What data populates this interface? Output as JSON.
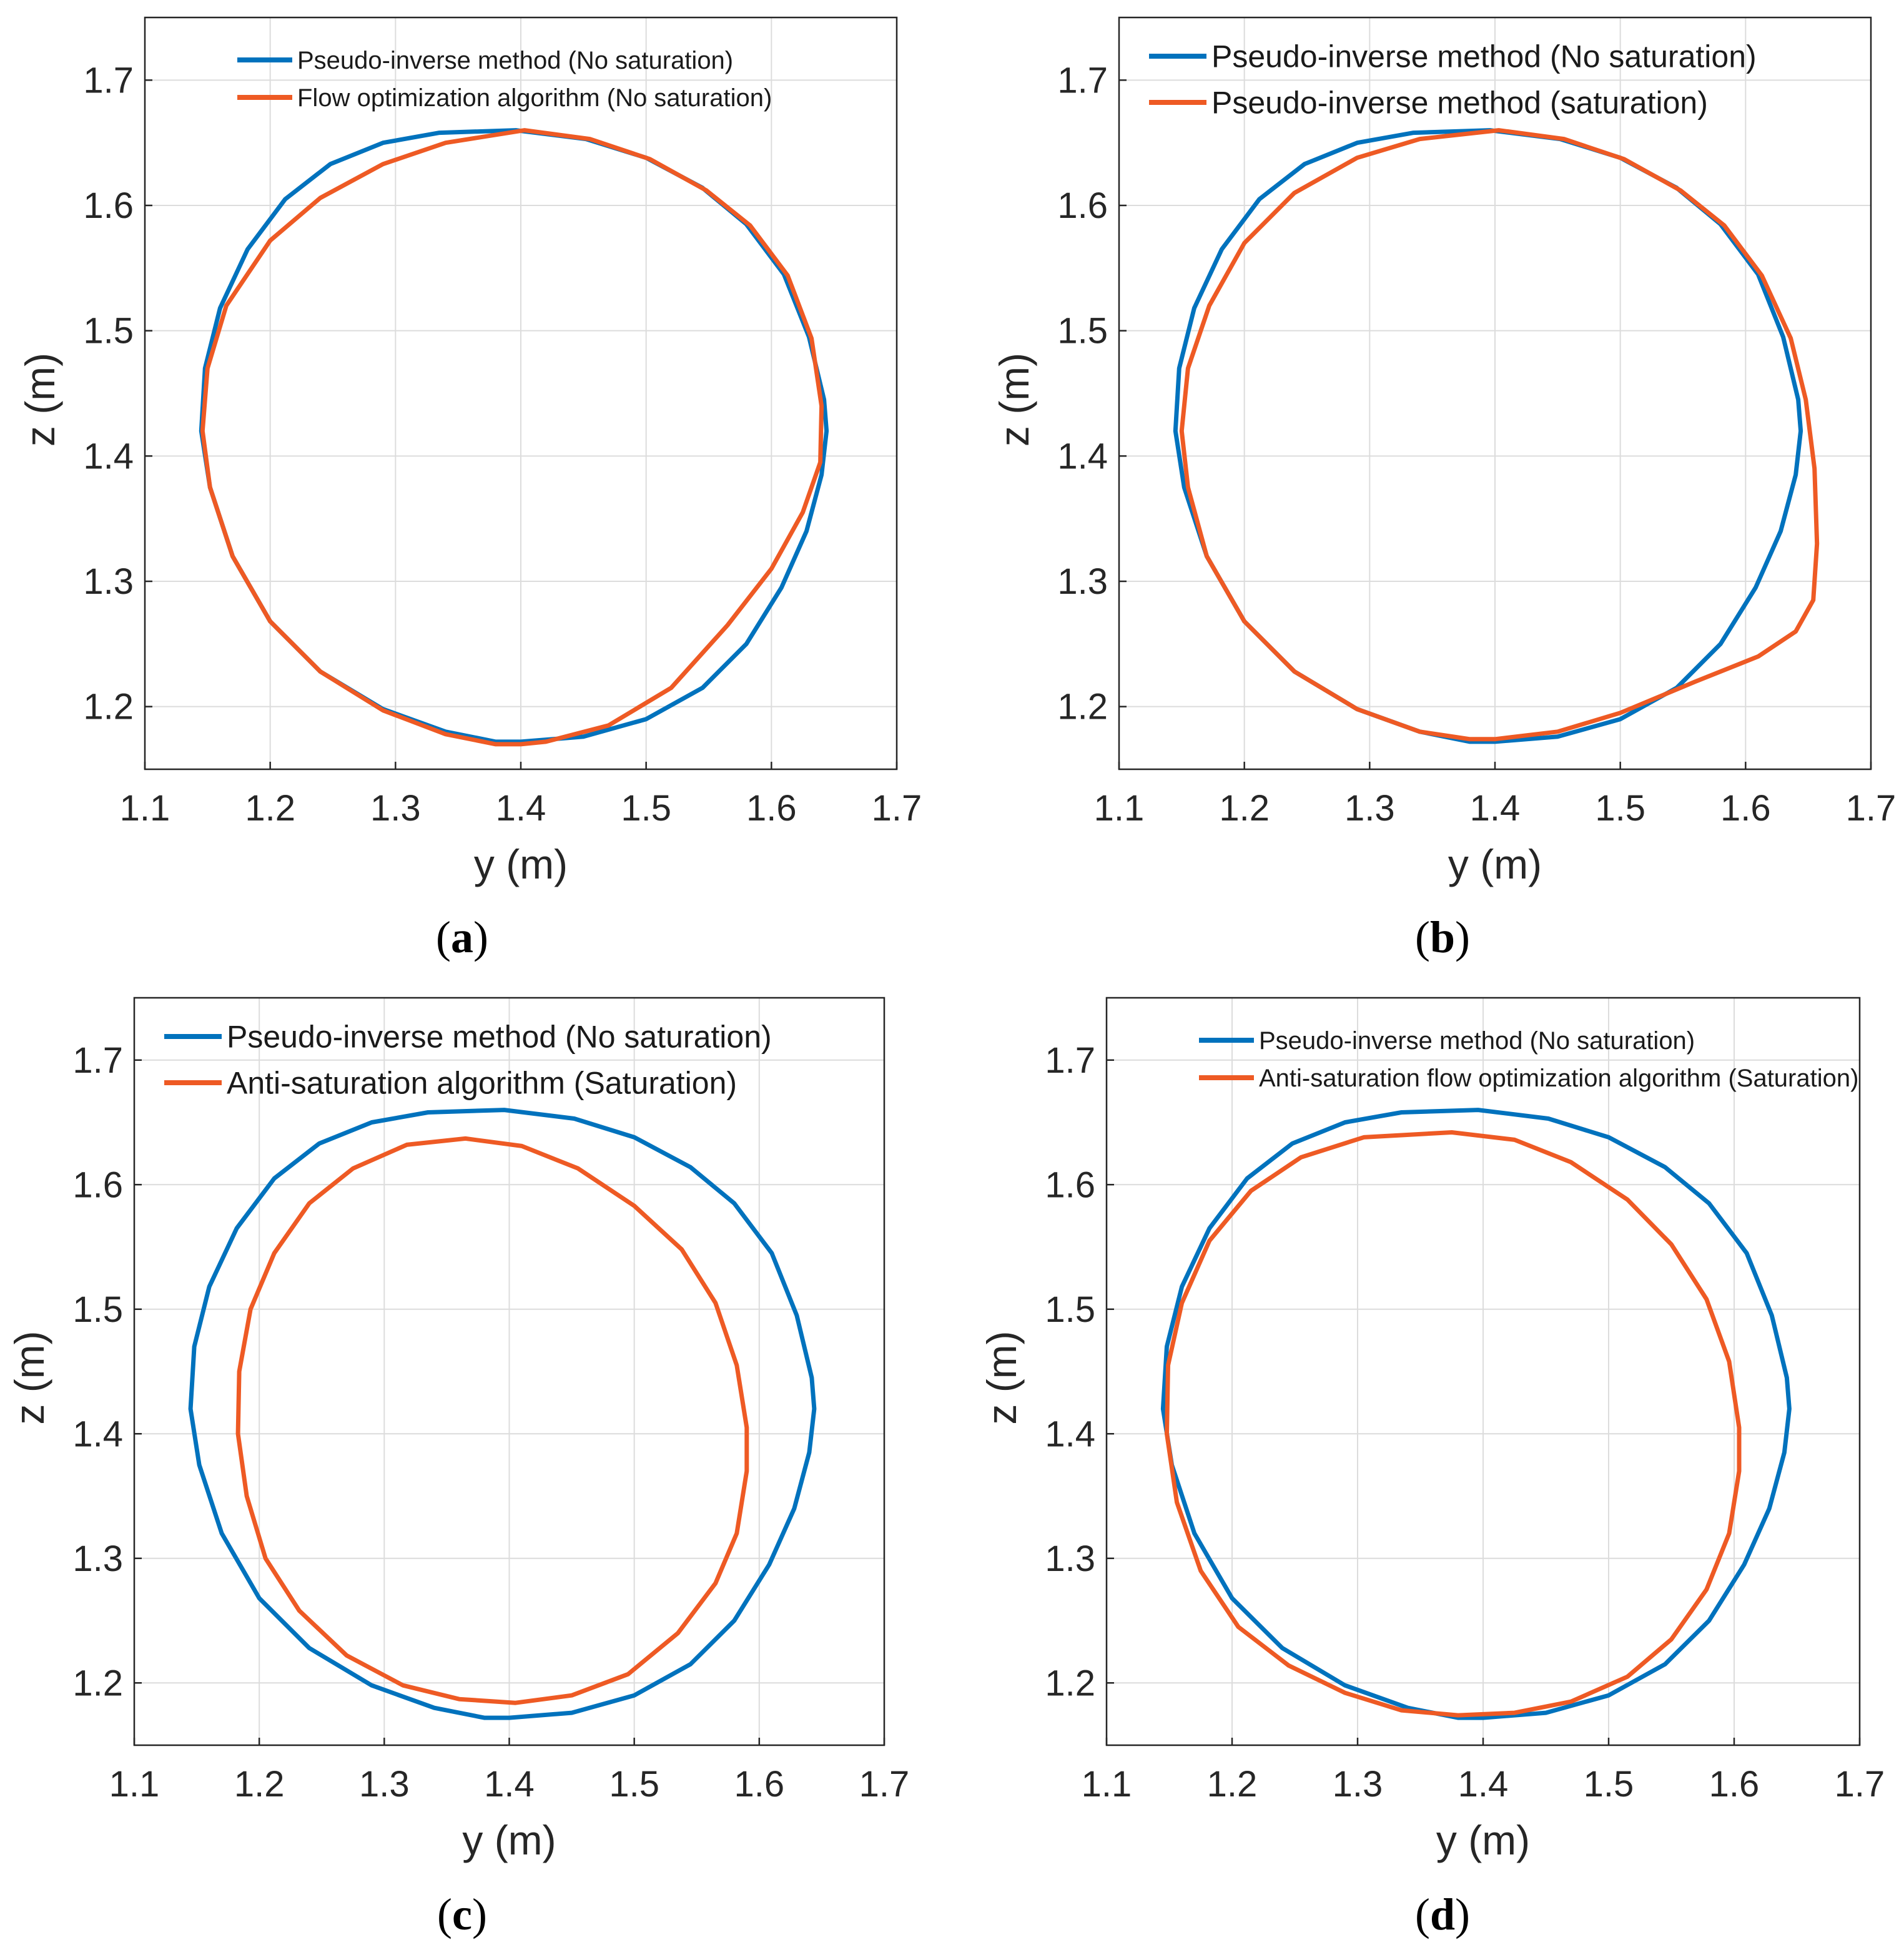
{
  "colors": {
    "blue": "#0072BD",
    "orange": "#EE5A24"
  },
  "chart_data": [
    {
      "type": "line",
      "panel": "a",
      "caption_letter": "a",
      "xlabel": "y (m)",
      "ylabel": "z (m)",
      "xlim": [
        1.1,
        1.7
      ],
      "ylim": [
        1.15,
        1.75
      ],
      "xticks": [
        "1.1",
        "1.2",
        "1.3",
        "1.4",
        "1.5",
        "1.6",
        "1.7"
      ],
      "yticks": [
        "1.2",
        "1.3",
        "1.4",
        "1.5",
        "1.6",
        "1.7"
      ],
      "legend_size": "small",
      "series": [
        {
          "name": "Pseudo-inverse method (No saturation)",
          "color": "#0072BD",
          "x": [
            1.396,
            1.452,
            1.5,
            1.545,
            1.58,
            1.61,
            1.63,
            1.642,
            1.644,
            1.64,
            1.628,
            1.608,
            1.58,
            1.545,
            1.5,
            1.45,
            1.4,
            1.38,
            1.34,
            1.29,
            1.24,
            1.2,
            1.17,
            1.152,
            1.145,
            1.148,
            1.16,
            1.182,
            1.212,
            1.248,
            1.29,
            1.335,
            1.396
          ],
          "y": [
            1.66,
            1.653,
            1.638,
            1.614,
            1.585,
            1.545,
            1.495,
            1.445,
            1.42,
            1.385,
            1.34,
            1.295,
            1.25,
            1.215,
            1.19,
            1.176,
            1.172,
            1.172,
            1.18,
            1.198,
            1.228,
            1.268,
            1.32,
            1.375,
            1.42,
            1.47,
            1.518,
            1.565,
            1.605,
            1.633,
            1.65,
            1.658,
            1.66
          ]
        },
        {
          "name": "Flow optimization algorithm (No saturation)",
          "color": "#EE5A24",
          "x": [
            1.403,
            1.455,
            1.503,
            1.548,
            1.583,
            1.613,
            1.632,
            1.64,
            1.639,
            1.625,
            1.6,
            1.565,
            1.52,
            1.47,
            1.42,
            1.4,
            1.38,
            1.34,
            1.29,
            1.24,
            1.2,
            1.17,
            1.152,
            1.146,
            1.15,
            1.165,
            1.2,
            1.24,
            1.29,
            1.34,
            1.403
          ],
          "y": [
            1.66,
            1.653,
            1.637,
            1.612,
            1.584,
            1.544,
            1.494,
            1.44,
            1.395,
            1.355,
            1.31,
            1.265,
            1.215,
            1.185,
            1.172,
            1.17,
            1.17,
            1.178,
            1.197,
            1.228,
            1.268,
            1.32,
            1.375,
            1.42,
            1.47,
            1.52,
            1.572,
            1.606,
            1.633,
            1.65,
            1.66
          ]
        }
      ]
    },
    {
      "type": "line",
      "panel": "b",
      "caption_letter": "b",
      "xlabel": "y (m)",
      "ylabel": "z (m)",
      "xlim": [
        1.1,
        1.7
      ],
      "ylim": [
        1.15,
        1.75
      ],
      "xticks": [
        "1.1",
        "1.2",
        "1.3",
        "1.4",
        "1.5",
        "1.6",
        "1.7"
      ],
      "yticks": [
        "1.2",
        "1.3",
        "1.4",
        "1.5",
        "1.6",
        "1.7"
      ],
      "legend_size": "large",
      "series": [
        {
          "name": "Pseudo-inverse method (No saturation)",
          "color": "#0072BD",
          "x": [
            1.396,
            1.452,
            1.5,
            1.545,
            1.58,
            1.61,
            1.63,
            1.642,
            1.644,
            1.64,
            1.628,
            1.608,
            1.58,
            1.545,
            1.5,
            1.45,
            1.4,
            1.38,
            1.34,
            1.29,
            1.24,
            1.2,
            1.17,
            1.152,
            1.145,
            1.148,
            1.16,
            1.182,
            1.212,
            1.248,
            1.29,
            1.335,
            1.396
          ],
          "y": [
            1.66,
            1.653,
            1.638,
            1.614,
            1.585,
            1.545,
            1.495,
            1.445,
            1.42,
            1.385,
            1.34,
            1.295,
            1.25,
            1.215,
            1.19,
            1.176,
            1.172,
            1.172,
            1.18,
            1.198,
            1.228,
            1.268,
            1.32,
            1.375,
            1.42,
            1.47,
            1.518,
            1.565,
            1.605,
            1.633,
            1.65,
            1.658,
            1.66
          ]
        },
        {
          "name": "Pseudo-inverse method (saturation)",
          "color": "#EE5A24",
          "x": [
            1.403,
            1.455,
            1.503,
            1.548,
            1.583,
            1.613,
            1.636,
            1.648,
            1.655,
            1.657,
            1.654,
            1.64,
            1.61,
            1.56,
            1.5,
            1.45,
            1.4,
            1.38,
            1.34,
            1.29,
            1.24,
            1.2,
            1.17,
            1.155,
            1.15,
            1.155,
            1.172,
            1.2,
            1.24,
            1.29,
            1.34,
            1.403
          ],
          "y": [
            1.66,
            1.653,
            1.637,
            1.612,
            1.584,
            1.544,
            1.494,
            1.445,
            1.39,
            1.33,
            1.285,
            1.26,
            1.24,
            1.22,
            1.195,
            1.18,
            1.174,
            1.174,
            1.18,
            1.198,
            1.228,
            1.268,
            1.32,
            1.375,
            1.42,
            1.47,
            1.52,
            1.57,
            1.61,
            1.638,
            1.653,
            1.66
          ]
        }
      ]
    },
    {
      "type": "line",
      "panel": "c",
      "caption_letter": "c",
      "xlabel": "y (m)",
      "ylabel": "z (m)",
      "xlim": [
        1.1,
        1.7
      ],
      "ylim": [
        1.15,
        1.75
      ],
      "xticks": [
        "1.1",
        "1.2",
        "1.3",
        "1.4",
        "1.5",
        "1.6",
        "1.7"
      ],
      "yticks": [
        "1.2",
        "1.3",
        "1.4",
        "1.5",
        "1.6",
        "1.7"
      ],
      "legend_size": "large",
      "series": [
        {
          "name": "Pseudo-inverse method (No saturation)",
          "color": "#0072BD",
          "x": [
            1.396,
            1.452,
            1.5,
            1.545,
            1.58,
            1.61,
            1.63,
            1.642,
            1.644,
            1.64,
            1.628,
            1.608,
            1.58,
            1.545,
            1.5,
            1.45,
            1.4,
            1.38,
            1.34,
            1.29,
            1.24,
            1.2,
            1.17,
            1.152,
            1.145,
            1.148,
            1.16,
            1.182,
            1.212,
            1.248,
            1.29,
            1.335,
            1.396
          ],
          "y": [
            1.66,
            1.653,
            1.638,
            1.614,
            1.585,
            1.545,
            1.495,
            1.445,
            1.42,
            1.385,
            1.34,
            1.295,
            1.25,
            1.215,
            1.19,
            1.176,
            1.172,
            1.172,
            1.18,
            1.198,
            1.228,
            1.268,
            1.32,
            1.375,
            1.42,
            1.47,
            1.518,
            1.565,
            1.605,
            1.633,
            1.65,
            1.658,
            1.66
          ]
        },
        {
          "name": "Anti-saturation algorithm (Saturation)",
          "color": "#EE5A24",
          "x": [
            1.365,
            1.41,
            1.455,
            1.5,
            1.538,
            1.565,
            1.582,
            1.59,
            1.59,
            1.582,
            1.565,
            1.535,
            1.495,
            1.45,
            1.405,
            1.36,
            1.315,
            1.27,
            1.232,
            1.205,
            1.19,
            1.183,
            1.184,
            1.193,
            1.212,
            1.24,
            1.275,
            1.318,
            1.365
          ],
          "y": [
            1.637,
            1.631,
            1.613,
            1.583,
            1.548,
            1.505,
            1.455,
            1.405,
            1.37,
            1.32,
            1.28,
            1.24,
            1.207,
            1.19,
            1.184,
            1.187,
            1.198,
            1.222,
            1.258,
            1.3,
            1.35,
            1.4,
            1.45,
            1.5,
            1.545,
            1.585,
            1.613,
            1.632,
            1.637
          ]
        }
      ]
    },
    {
      "type": "line",
      "panel": "d",
      "caption_letter": "d",
      "xlabel": "y (m)",
      "ylabel": "z (m)",
      "xlim": [
        1.1,
        1.7
      ],
      "ylim": [
        1.15,
        1.75
      ],
      "xticks": [
        "1.1",
        "1.2",
        "1.3",
        "1.4",
        "1.5",
        "1.6",
        "1.7"
      ],
      "yticks": [
        "1.2",
        "1.3",
        "1.4",
        "1.5",
        "1.6",
        "1.7"
      ],
      "legend_size": "small",
      "series": [
        {
          "name": "Pseudo-inverse method (No saturation)",
          "color": "#0072BD",
          "x": [
            1.396,
            1.452,
            1.5,
            1.545,
            1.58,
            1.61,
            1.63,
            1.642,
            1.644,
            1.64,
            1.628,
            1.608,
            1.58,
            1.545,
            1.5,
            1.45,
            1.4,
            1.38,
            1.34,
            1.29,
            1.24,
            1.2,
            1.17,
            1.152,
            1.145,
            1.148,
            1.16,
            1.182,
            1.212,
            1.248,
            1.29,
            1.335,
            1.396
          ],
          "y": [
            1.66,
            1.653,
            1.638,
            1.614,
            1.585,
            1.545,
            1.495,
            1.445,
            1.42,
            1.385,
            1.34,
            1.295,
            1.25,
            1.215,
            1.19,
            1.176,
            1.172,
            1.172,
            1.18,
            1.198,
            1.228,
            1.268,
            1.32,
            1.375,
            1.42,
            1.47,
            1.518,
            1.565,
            1.605,
            1.633,
            1.65,
            1.658,
            1.66
          ]
        },
        {
          "name": "Anti-saturation flow optimization algorithm (Saturation)",
          "color": "#EE5A24",
          "x": [
            1.375,
            1.425,
            1.47,
            1.515,
            1.55,
            1.578,
            1.596,
            1.604,
            1.604,
            1.596,
            1.578,
            1.55,
            1.515,
            1.47,
            1.425,
            1.38,
            1.335,
            1.29,
            1.245,
            1.205,
            1.175,
            1.156,
            1.148,
            1.149,
            1.16,
            1.182,
            1.215,
            1.255,
            1.305,
            1.375
          ],
          "y": [
            1.642,
            1.636,
            1.618,
            1.588,
            1.552,
            1.508,
            1.458,
            1.405,
            1.37,
            1.32,
            1.275,
            1.235,
            1.205,
            1.185,
            1.176,
            1.174,
            1.178,
            1.192,
            1.214,
            1.245,
            1.29,
            1.345,
            1.4,
            1.455,
            1.505,
            1.555,
            1.595,
            1.622,
            1.638,
            1.642
          ]
        }
      ]
    }
  ]
}
